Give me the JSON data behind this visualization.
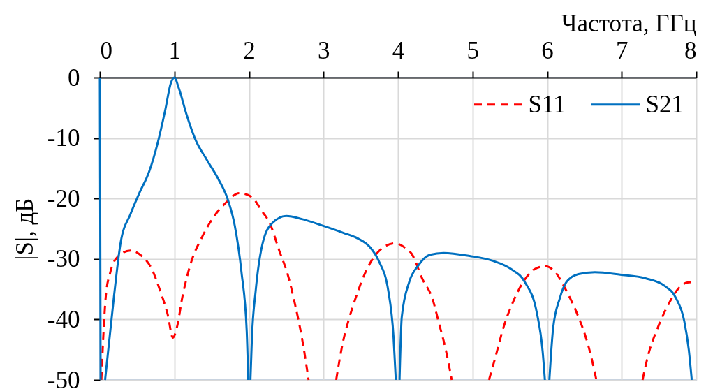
{
  "chart_data": {
    "type": "line",
    "xlabel": "Частота, ГГц",
    "ylabel": "|S|, дБ",
    "xlim": [
      0,
      8
    ],
    "xticks": [
      0,
      1,
      2,
      3,
      4,
      5,
      6,
      7,
      8
    ],
    "ylim": [
      -50,
      0
    ],
    "yticks": [
      -50,
      -40,
      -30,
      -20,
      -10,
      0
    ],
    "grid": true,
    "legend": "top right",
    "series": [
      {
        "name": "S11",
        "color": "#ff0000",
        "line_style": "dashed",
        "x": [
          0.02,
          0.05,
          0.08,
          0.14,
          0.22,
          0.41,
          0.56,
          0.69,
          0.81,
          0.91,
          0.98,
          1.03,
          1.11,
          1.22,
          1.37,
          1.53,
          1.69,
          1.87,
          2.03,
          2.18,
          2.28,
          2.4,
          2.53,
          2.62,
          2.71,
          2.8,
          3.0,
          3.17,
          3.26,
          3.34,
          3.43,
          3.59,
          3.77,
          3.96,
          4.12,
          4.18,
          4.33,
          4.46,
          4.55,
          4.64,
          4.72,
          5.0,
          5.22,
          5.3,
          5.42,
          5.55,
          5.7,
          5.86,
          5.98,
          6.11,
          6.26,
          6.42,
          6.51,
          6.64,
          6.66,
          7.0,
          7.28,
          7.36,
          7.48,
          7.64,
          7.76,
          7.88,
          8.0
        ],
        "values": [
          -50,
          -41.9,
          -36.1,
          -32.2,
          -29.9,
          -28.6,
          -29.5,
          -31.5,
          -35.3,
          -39.2,
          -43.0,
          -41.5,
          -36.1,
          -30.7,
          -26.4,
          -23.0,
          -20.7,
          -19.1,
          -19.7,
          -22.2,
          -24.1,
          -28.4,
          -33.0,
          -37.6,
          -43.0,
          -50,
          null,
          -50,
          -43.8,
          -40.0,
          -36.5,
          -31.5,
          -28.4,
          -27.4,
          -28.4,
          -29.1,
          -33.4,
          -36.5,
          -40.7,
          -45.0,
          -50,
          null,
          -50,
          -46.5,
          -41.1,
          -36.9,
          -33.4,
          -31.5,
          -31.2,
          -32.2,
          -35.3,
          -39.6,
          -42.6,
          -48.8,
          -50,
          null,
          -50,
          -45.7,
          -41.5,
          -37.2,
          -34.9,
          -33.9,
          -33.8
        ]
      },
      {
        "name": "S21",
        "color": "#0070c0",
        "line_style": "solid",
        "x": [
          0,
          0.01,
          0.03,
          0.07,
          0.19,
          0.28,
          0.41,
          0.53,
          0.66,
          0.78,
          0.88,
          0.95,
          1.0,
          1.06,
          1.16,
          1.28,
          1.44,
          1.59,
          1.72,
          1.81,
          1.9,
          1.97,
          1.99,
          2.0,
          2.02,
          2.04,
          2.09,
          2.18,
          2.31,
          2.5,
          2.71,
          2.99,
          3.27,
          3.46,
          3.62,
          3.74,
          3.87,
          3.94,
          3.97,
          4.0,
          4.02,
          4.05,
          4.15,
          4.27,
          4.43,
          4.61,
          4.96,
          5.27,
          5.52,
          5.7,
          5.86,
          5.94,
          5.97,
          6.0,
          6.03,
          6.08,
          6.17,
          6.26,
          6.42,
          6.64,
          6.98,
          7.32,
          7.57,
          7.73,
          7.84,
          7.9,
          7.94
        ],
        "values": [
          0,
          -50,
          null,
          -50,
          -36.1,
          -27.2,
          -22.6,
          -19.1,
          -15.6,
          -10.6,
          -5.2,
          -1.0,
          0,
          -1.8,
          -6.0,
          -10.2,
          -13.7,
          -16.8,
          -20.3,
          -24.5,
          -32.2,
          -41.9,
          -50,
          null,
          -50,
          -43.0,
          -35.3,
          -27.6,
          -24.1,
          -22.9,
          -23.4,
          -24.5,
          -25.7,
          -26.6,
          -28.0,
          -30.3,
          -35.3,
          -43.0,
          -50,
          null,
          -50,
          -39.6,
          -33.8,
          -31.1,
          -29.3,
          -29.0,
          -29.5,
          -30.3,
          -31.7,
          -33.8,
          -38.8,
          -45.3,
          -50,
          null,
          -50,
          -41.5,
          -36.5,
          -33.8,
          -32.5,
          -32.2,
          -32.6,
          -33.2,
          -34.4,
          -36.5,
          -40.3,
          -45.0,
          -50
        ]
      }
    ]
  }
}
